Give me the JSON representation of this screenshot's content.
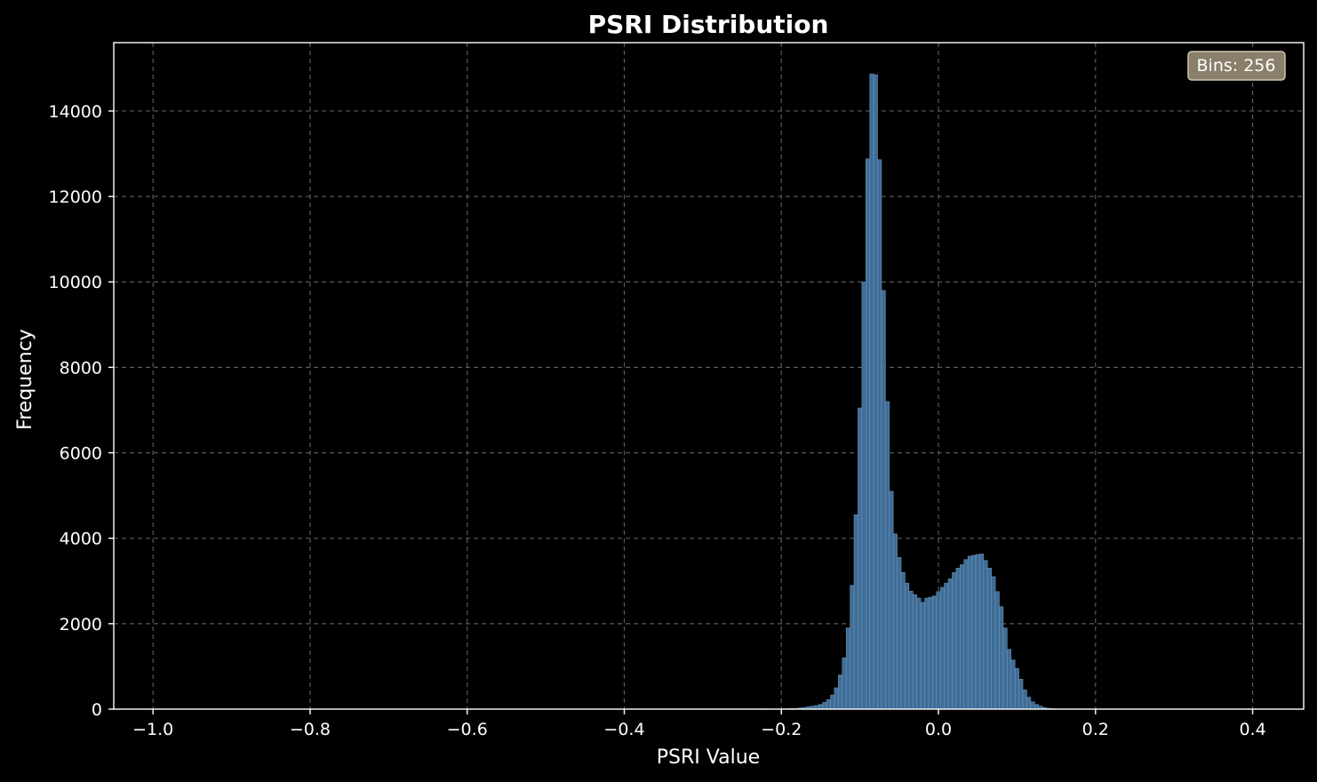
{
  "chart_data": {
    "type": "bar",
    "title": "PSRI Distribution",
    "xlabel": "PSRI Value",
    "ylabel": "Frequency",
    "xlim": [
      -1.05,
      0.465
    ],
    "ylim": [
      0,
      15600
    ],
    "x_ticks": [
      -1.0,
      -0.8,
      -0.6,
      -0.4,
      -0.2,
      0.0,
      0.2,
      0.4
    ],
    "x_tick_labels": [
      "−1.0",
      "−0.8",
      "−0.6",
      "−0.4",
      "−0.2",
      "0.0",
      "0.2",
      "0.4"
    ],
    "y_ticks": [
      0,
      2000,
      4000,
      6000,
      8000,
      10000,
      12000,
      14000
    ],
    "y_tick_labels": [
      "0",
      "2000",
      "4000",
      "6000",
      "8000",
      "10000",
      "12000",
      "14000"
    ],
    "grid": true,
    "bar_color": "#3f6d96",
    "bar_edge_color": "#6f9cc4",
    "annotation": "Bins: 256",
    "annotation_placement": "top-right",
    "bin_width": 0.005,
    "x": [
      -0.225,
      -0.22,
      -0.215,
      -0.21,
      -0.205,
      -0.2,
      -0.195,
      -0.19,
      -0.185,
      -0.18,
      -0.175,
      -0.17,
      -0.165,
      -0.16,
      -0.155,
      -0.15,
      -0.145,
      -0.14,
      -0.135,
      -0.13,
      -0.125,
      -0.12,
      -0.115,
      -0.11,
      -0.105,
      -0.1,
      -0.095,
      -0.09,
      -0.085,
      -0.08,
      -0.075,
      -0.07,
      -0.065,
      -0.06,
      -0.055,
      -0.05,
      -0.045,
      -0.04,
      -0.035,
      -0.03,
      -0.025,
      -0.02,
      -0.015,
      -0.01,
      -0.005,
      0.0,
      0.005,
      0.01,
      0.015,
      0.02,
      0.025,
      0.03,
      0.035,
      0.04,
      0.045,
      0.05,
      0.055,
      0.06,
      0.065,
      0.07,
      0.075,
      0.08,
      0.085,
      0.09,
      0.095,
      0.1,
      0.105,
      0.11,
      0.115,
      0.12,
      0.125,
      0.13,
      0.135,
      0.14,
      0.145,
      0.15,
      0.155,
      0.16
    ],
    "values": [
      8,
      6,
      5,
      5,
      6,
      8,
      10,
      12,
      15,
      20,
      30,
      40,
      55,
      70,
      85,
      110,
      160,
      220,
      330,
      500,
      800,
      1200,
      1900,
      2900,
      4550,
      7050,
      10000,
      12880,
      14870,
      14850,
      12860,
      9800,
      7200,
      5100,
      4100,
      3550,
      3200,
      2950,
      2760,
      2680,
      2600,
      2500,
      2600,
      2620,
      2650,
      2750,
      2850,
      2950,
      3050,
      3200,
      3300,
      3380,
      3500,
      3580,
      3600,
      3620,
      3630,
      3480,
      3300,
      3100,
      2750,
      2400,
      1900,
      1400,
      1150,
      950,
      700,
      450,
      280,
      170,
      110,
      70,
      40,
      20,
      10,
      6,
      4,
      2
    ]
  }
}
